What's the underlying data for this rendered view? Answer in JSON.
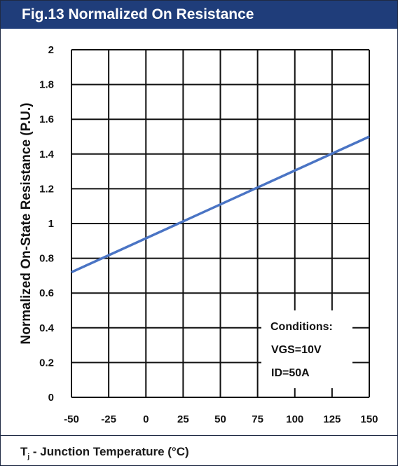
{
  "title": "Fig.13 Normalized On Resistance",
  "colors": {
    "title_bg": "#1f3d7a",
    "series": "#4a74c4",
    "grid": "#111111"
  },
  "chart_data": {
    "type": "line",
    "xlabel_main": "T",
    "xlabel_sub": "j",
    "xlabel_rest": " - Junction Temperature (°C)",
    "ylabel": "Normalized On-State Resistance (P.U.)",
    "xlim": [
      -50,
      150
    ],
    "ylim": [
      0,
      2
    ],
    "x_ticks": [
      "-50",
      "-25",
      "0",
      "25",
      "50",
      "75",
      "100",
      "125",
      "150"
    ],
    "y_ticks": [
      "0",
      "0.2",
      "0.4",
      "0.6",
      "0.8",
      "1",
      "1.2",
      "1.4",
      "1.6",
      "1.8",
      "2"
    ],
    "x_tick_values": [
      -50,
      -25,
      0,
      25,
      50,
      75,
      100,
      125,
      150
    ],
    "y_tick_values": [
      0,
      0.2,
      0.4,
      0.6,
      0.8,
      1.0,
      1.2,
      1.4,
      1.6,
      1.8,
      2.0
    ],
    "grid": true,
    "series": [
      {
        "x": [
          -50,
          150
        ],
        "y": [
          0.72,
          1.5
        ]
      }
    ],
    "annotations": [
      "Conditions:",
      "VGS=10V",
      "ID=50A"
    ]
  }
}
